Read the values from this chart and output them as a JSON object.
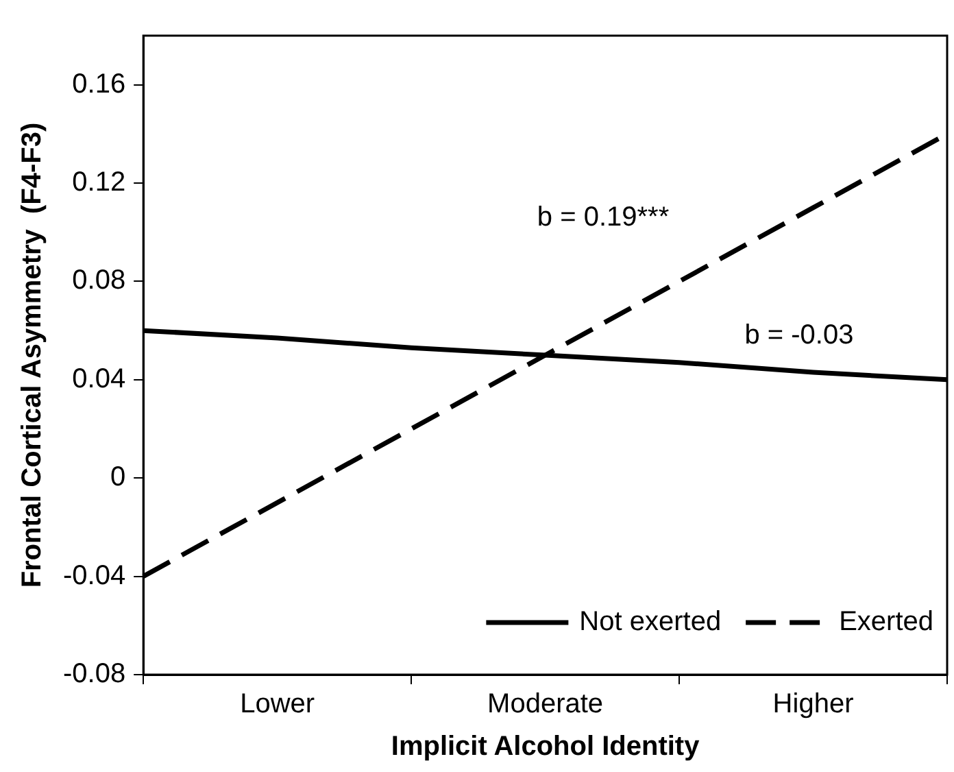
{
  "chart_data": {
    "type": "line",
    "xlabel": "Implicit Alcohol Identity",
    "ylabel": "Frontal Cortical Asymmetry  (F4-F3)",
    "categories": [
      null,
      "Lower",
      null,
      "Moderate",
      null,
      "Higher",
      null
    ],
    "series": [
      {
        "name": "Not exerted",
        "color": "#000000",
        "line_style": "solid",
        "values": [
          0.06,
          0.057,
          0.053,
          0.05,
          0.047,
          0.043,
          0.04
        ]
      },
      {
        "name": "Exerted",
        "color": "#000000",
        "line_style": "dashed",
        "values": [
          -0.04,
          -0.01,
          0.02,
          0.05,
          0.08,
          0.11,
          0.14
        ]
      }
    ],
    "ylim": [
      -0.08,
      0.18
    ],
    "yticks": [
      -0.08,
      -0.04,
      0,
      0.04,
      0.08,
      0.12,
      0.16
    ],
    "grid": false,
    "legend": "bottom right",
    "marker": "none",
    "annotations": [
      "b = 0.19***",
      "b = -0.03"
    ]
  }
}
